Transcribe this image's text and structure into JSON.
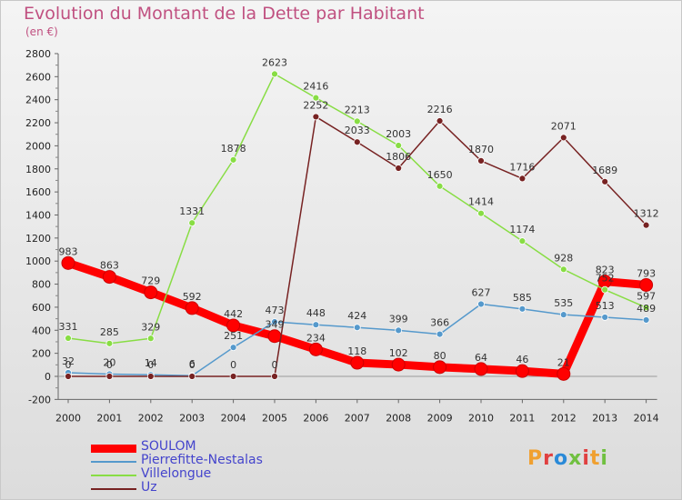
{
  "header": {
    "title": "Evolution du Montant de la Dette par Habitant",
    "subtitle": "(en €)"
  },
  "logo": {
    "text": "Proxiti",
    "letter_colors": [
      "#f0a030",
      "#e04040",
      "#2a8ad8",
      "#70c040",
      "#e04040",
      "#f0a030",
      "#70c040"
    ]
  },
  "chart_data": {
    "type": "line",
    "title": "Evolution du Montant de la Dette par Habitant",
    "subtitle": "(en €)",
    "xlabel": "",
    "ylabel": "",
    "categories": [
      "2000",
      "2001",
      "2002",
      "2003",
      "2004",
      "2005",
      "2006",
      "2007",
      "2008",
      "2009",
      "2010",
      "2011",
      "2012",
      "2013",
      "2014"
    ],
    "ylim": [
      -200,
      2800
    ],
    "yticks": [
      -200,
      0,
      200,
      400,
      600,
      800,
      1000,
      1200,
      1400,
      1600,
      1800,
      2000,
      2200,
      2400,
      2600,
      2800
    ],
    "grid": false,
    "legend_position": "bottom-left",
    "series": [
      {
        "name": "SOULOM",
        "color": "#ff0000",
        "values": [
          983,
          863,
          729,
          592,
          442,
          349,
          234,
          118,
          102,
          80,
          64,
          46,
          21,
          823,
          793
        ],
        "show_labels": true
      },
      {
        "name": "Pierrefitte-Nestalas",
        "color": "#5599cc",
        "values": [
          32,
          20,
          14,
          6,
          251,
          473,
          448,
          424,
          399,
          366,
          627,
          585,
          535,
          513,
          489
        ],
        "show_labels": true
      },
      {
        "name": "Villelongue",
        "color": "#88dd44",
        "values": [
          331,
          285,
          329,
          1331,
          1878,
          2623,
          2416,
          2213,
          2003,
          1650,
          1414,
          1174,
          928,
          752,
          597
        ],
        "show_labels": true
      },
      {
        "name": "Uz",
        "color": "#772222",
        "values": [
          0,
          0,
          0,
          0,
          0,
          0,
          2252,
          2033,
          1806,
          2216,
          1870,
          1716,
          2071,
          1689,
          1312
        ],
        "show_labels": true
      }
    ]
  }
}
